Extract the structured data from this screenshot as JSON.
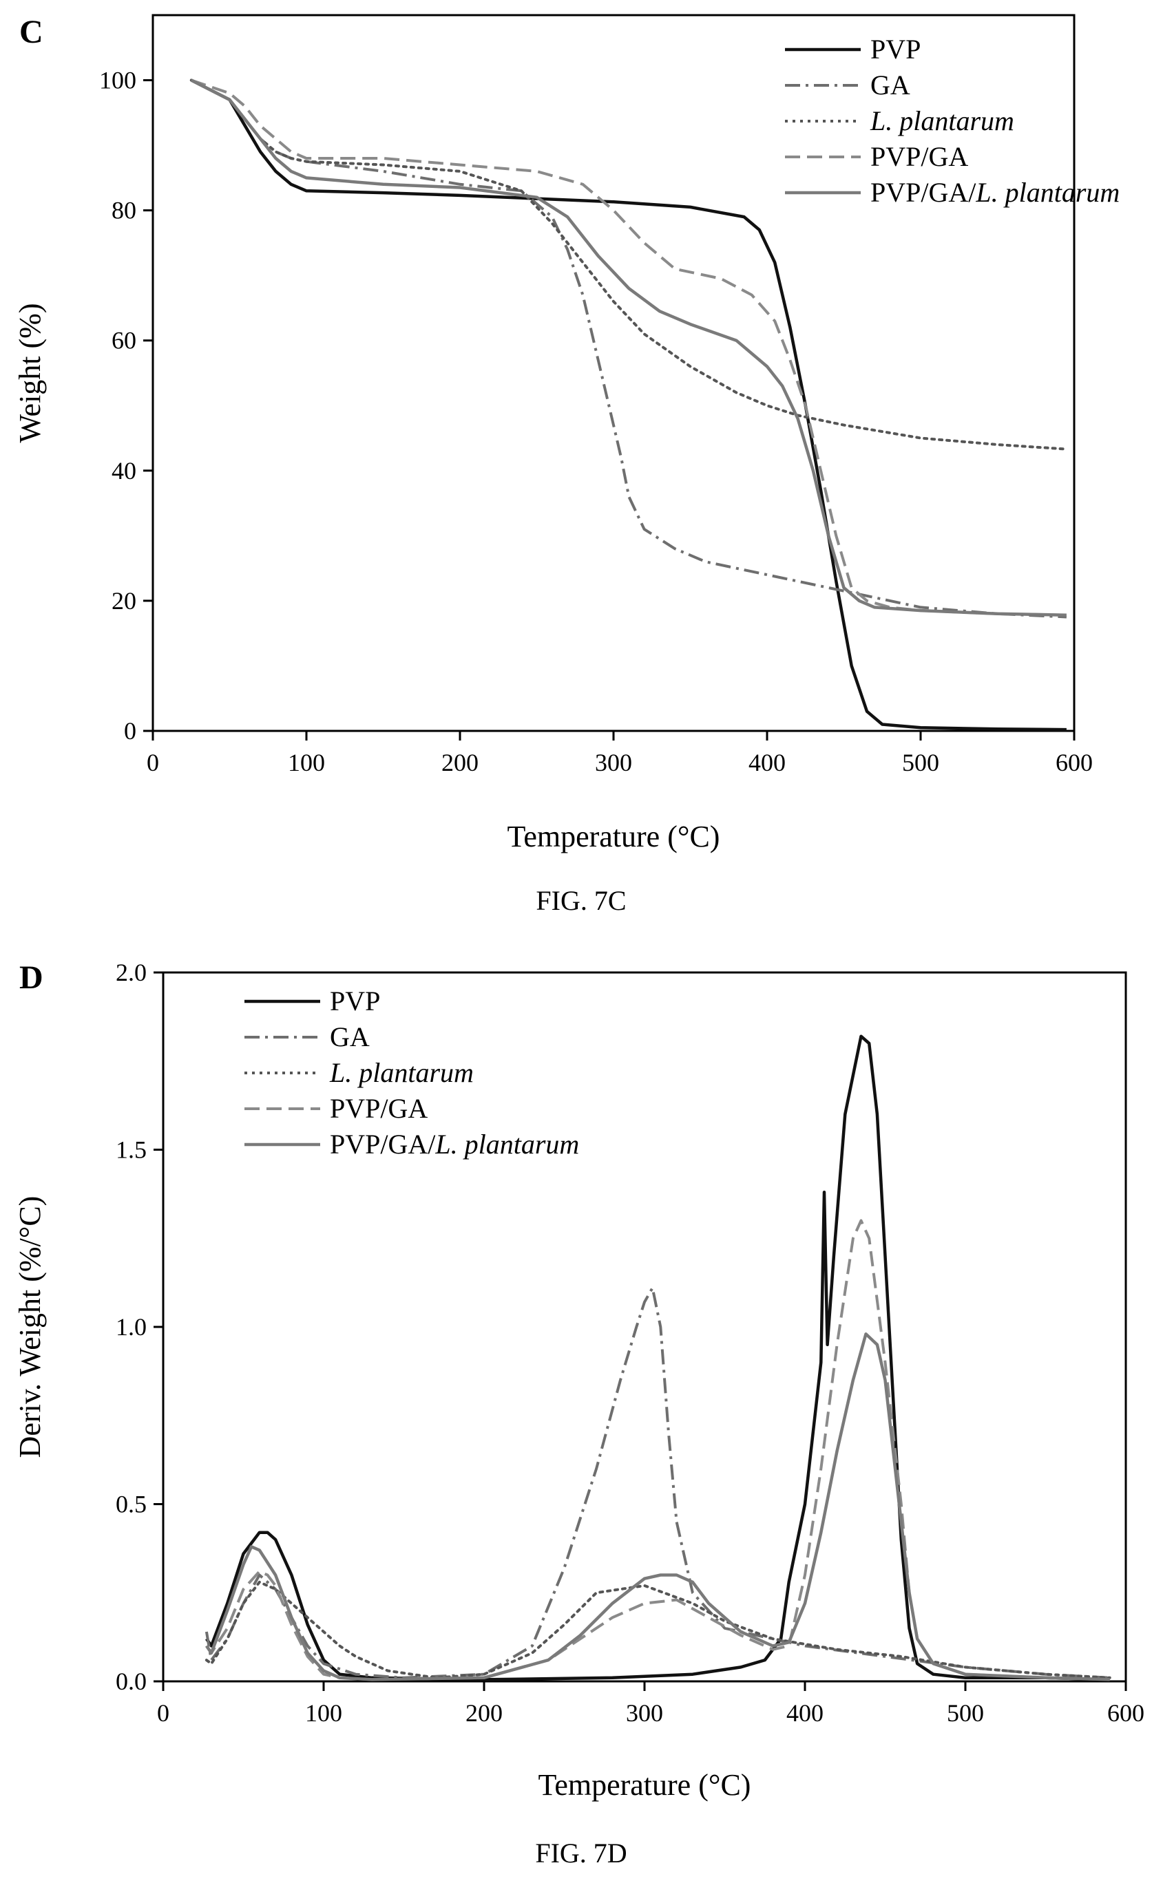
{
  "chart_data": [
    {
      "type": "line",
      "panel_label": "C",
      "caption": "FIG. 7C",
      "xlabel": "Temperature (°C)",
      "ylabel": "Weight (%)",
      "xlim": [
        0,
        600
      ],
      "ylim": [
        0,
        110
      ],
      "xticks": [
        0,
        100,
        200,
        300,
        400,
        500,
        600
      ],
      "yticks": [
        0,
        20,
        40,
        60,
        80,
        100
      ],
      "legend_position": "top-right",
      "grid": false,
      "series": [
        {
          "name": "PVP",
          "legend_parts": [
            {
              "text": "PVP",
              "italic": false
            }
          ],
          "color": "#111111",
          "dash": "solid",
          "x": [
            25,
            50,
            60,
            70,
            80,
            90,
            100,
            150,
            200,
            250,
            300,
            350,
            385,
            395,
            405,
            415,
            425,
            435,
            445,
            455,
            465,
            475,
            500,
            550,
            595
          ],
          "y": [
            100,
            97,
            93,
            89,
            86,
            84,
            83,
            82.7,
            82.3,
            81.8,
            81.3,
            80.5,
            79,
            77,
            72,
            62,
            50,
            37,
            23,
            10,
            3,
            1,
            0.5,
            0.3,
            0.2
          ]
        },
        {
          "name": "GA",
          "legend_parts": [
            {
              "text": "GA",
              "italic": false
            }
          ],
          "color": "#6e6e6e",
          "dash": "dashdot",
          "x": [
            25,
            50,
            60,
            70,
            80,
            90,
            100,
            150,
            200,
            240,
            260,
            270,
            280,
            290,
            300,
            305,
            310,
            320,
            340,
            360,
            400,
            450,
            500,
            550,
            595
          ],
          "y": [
            100,
            97,
            94,
            91,
            89,
            88,
            87.5,
            86,
            84,
            83,
            79,
            74,
            67,
            57,
            47,
            42,
            36,
            31,
            28,
            26,
            24,
            21.5,
            19,
            18,
            17.5
          ]
        },
        {
          "name": "L. plantarum",
          "legend_parts": [
            {
              "text": "L. plantarum",
              "italic": true
            }
          ],
          "color": "#555555",
          "dash": "dotted",
          "x": [
            25,
            50,
            60,
            70,
            80,
            90,
            100,
            150,
            200,
            240,
            260,
            280,
            300,
            320,
            350,
            380,
            400,
            420,
            450,
            500,
            550,
            595
          ],
          "y": [
            100,
            97,
            94,
            91,
            89,
            88,
            87.5,
            87,
            86,
            83,
            78,
            72,
            66,
            61,
            56,
            52,
            50,
            48.5,
            47,
            45,
            44,
            43.3
          ]
        },
        {
          "name": "PVP/GA",
          "legend_parts": [
            {
              "text": "PVP/GA",
              "italic": false
            }
          ],
          "color": "#8a8a8a",
          "dash": "dashed",
          "x": [
            25,
            50,
            60,
            70,
            80,
            90,
            100,
            150,
            200,
            250,
            280,
            300,
            320,
            340,
            370,
            390,
            405,
            415,
            425,
            435,
            445,
            455,
            465,
            480,
            500,
            550,
            595
          ],
          "y": [
            100,
            98,
            96,
            93,
            91,
            89,
            88,
            88,
            87,
            86,
            84,
            80,
            75,
            71,
            69.5,
            67,
            63,
            57,
            50,
            40,
            30,
            22,
            20,
            19,
            18.5,
            18,
            17.8
          ]
        },
        {
          "name": "PVP/GA/L. plantarum",
          "legend_parts": [
            {
              "text": "PVP/GA/",
              "italic": false
            },
            {
              "text": "L. plantarum",
              "italic": true
            }
          ],
          "color": "#7a7a7a",
          "dash": "solid",
          "x": [
            25,
            50,
            60,
            70,
            80,
            90,
            100,
            150,
            200,
            250,
            270,
            290,
            310,
            330,
            350,
            380,
            400,
            410,
            420,
            430,
            440,
            450,
            460,
            470,
            500,
            550,
            595
          ],
          "y": [
            100,
            97,
            94,
            91,
            88,
            86,
            85,
            84,
            83.5,
            82,
            79,
            73,
            68,
            64.5,
            62.5,
            60,
            56,
            53,
            48,
            40,
            30,
            22,
            20,
            19,
            18.5,
            18,
            17.8
          ]
        }
      ]
    },
    {
      "type": "line",
      "panel_label": "D",
      "caption": "FIG. 7D",
      "xlabel": "Temperature (°C)",
      "ylabel": "Deriv. Weight (%/°C)",
      "xlim": [
        0,
        600
      ],
      "ylim": [
        0,
        2.0
      ],
      "xticks": [
        0,
        100,
        200,
        300,
        400,
        500,
        600
      ],
      "yticks": [
        0.0,
        0.5,
        1.0,
        1.5,
        2.0
      ],
      "ytick_labels": [
        "0.0",
        "0.5",
        "1.0",
        "1.5",
        "2.0"
      ],
      "legend_position": "top-left",
      "grid": false,
      "series": [
        {
          "name": "PVP",
          "legend_parts": [
            {
              "text": "PVP",
              "italic": false
            }
          ],
          "color": "#111111",
          "dash": "solid",
          "x": [
            27,
            30,
            40,
            50,
            60,
            65,
            70,
            80,
            90,
            100,
            110,
            130,
            200,
            280,
            330,
            360,
            375,
            385,
            390,
            400,
            410,
            412,
            414,
            418,
            425,
            435,
            440,
            445,
            450,
            455,
            460,
            465,
            470,
            480,
            500,
            550,
            590
          ],
          "y": [
            0.12,
            0.1,
            0.22,
            0.36,
            0.42,
            0.42,
            0.4,
            0.3,
            0.16,
            0.06,
            0.02,
            0.01,
            0.005,
            0.01,
            0.02,
            0.04,
            0.06,
            0.12,
            0.28,
            0.5,
            0.9,
            1.38,
            0.95,
            1.2,
            1.6,
            1.82,
            1.8,
            1.6,
            1.2,
            0.8,
            0.4,
            0.15,
            0.05,
            0.02,
            0.01,
            0.01,
            0.005
          ]
        },
        {
          "name": "GA",
          "legend_parts": [
            {
              "text": "GA",
              "italic": false
            }
          ],
          "color": "#6e6e6e",
          "dash": "dashdot",
          "x": [
            27,
            30,
            40,
            50,
            60,
            70,
            80,
            90,
            100,
            120,
            150,
            200,
            230,
            250,
            270,
            285,
            295,
            300,
            305,
            310,
            315,
            320,
            330,
            350,
            400,
            450,
            500,
            550,
            590
          ],
          "y": [
            0.14,
            0.06,
            0.12,
            0.22,
            0.3,
            0.26,
            0.18,
            0.1,
            0.05,
            0.02,
            0.01,
            0.02,
            0.1,
            0.32,
            0.6,
            0.85,
            1.0,
            1.07,
            1.11,
            1.0,
            0.7,
            0.45,
            0.25,
            0.15,
            0.1,
            0.07,
            0.04,
            0.02,
            0.01
          ]
        },
        {
          "name": "L. plantarum",
          "legend_parts": [
            {
              "text": "L. plantarum",
              "italic": true
            }
          ],
          "color": "#555555",
          "dash": "dotted",
          "x": [
            27,
            30,
            40,
            50,
            60,
            70,
            80,
            90,
            100,
            110,
            120,
            140,
            170,
            200,
            230,
            250,
            270,
            300,
            330,
            350,
            380,
            420,
            460,
            500,
            550,
            590
          ],
          "y": [
            0.06,
            0.05,
            0.12,
            0.22,
            0.28,
            0.26,
            0.22,
            0.18,
            0.14,
            0.1,
            0.07,
            0.03,
            0.01,
            0.02,
            0.08,
            0.16,
            0.25,
            0.27,
            0.22,
            0.17,
            0.12,
            0.09,
            0.07,
            0.04,
            0.02,
            0.01
          ]
        },
        {
          "name": "PVP/GA",
          "legend_parts": [
            {
              "text": "PVP/GA",
              "italic": false
            }
          ],
          "color": "#8a8a8a",
          "dash": "dashed",
          "x": [
            27,
            30,
            40,
            50,
            60,
            65,
            70,
            80,
            90,
            100,
            110,
            130,
            200,
            240,
            260,
            280,
            300,
            320,
            340,
            360,
            380,
            390,
            400,
            410,
            420,
            430,
            435,
            440,
            450,
            460,
            465,
            470,
            480,
            500,
            550,
            590
          ],
          "y": [
            0.1,
            0.08,
            0.15,
            0.26,
            0.31,
            0.3,
            0.27,
            0.16,
            0.07,
            0.02,
            0.01,
            0.005,
            0.01,
            0.06,
            0.12,
            0.18,
            0.22,
            0.23,
            0.18,
            0.13,
            0.09,
            0.1,
            0.3,
            0.6,
            0.95,
            1.25,
            1.3,
            1.25,
            0.9,
            0.5,
            0.25,
            0.12,
            0.05,
            0.02,
            0.01,
            0.005
          ]
        },
        {
          "name": "PVP/GA/L. plantarum",
          "legend_parts": [
            {
              "text": "PVP/GA/",
              "italic": false
            },
            {
              "text": "L. plantarum",
              "italic": true
            }
          ],
          "color": "#7a7a7a",
          "dash": "solid",
          "x": [
            27,
            30,
            40,
            50,
            55,
            60,
            70,
            80,
            90,
            100,
            110,
            130,
            200,
            240,
            260,
            280,
            300,
            310,
            320,
            330,
            340,
            360,
            380,
            390,
            400,
            410,
            420,
            430,
            438,
            445,
            450,
            460,
            465,
            470,
            480,
            500,
            550,
            590
          ],
          "y": [
            0.1,
            0.08,
            0.2,
            0.33,
            0.38,
            0.37,
            0.3,
            0.18,
            0.08,
            0.03,
            0.01,
            0.005,
            0.01,
            0.06,
            0.13,
            0.22,
            0.29,
            0.3,
            0.3,
            0.28,
            0.22,
            0.14,
            0.1,
            0.11,
            0.22,
            0.42,
            0.65,
            0.85,
            0.98,
            0.95,
            0.85,
            0.45,
            0.25,
            0.12,
            0.05,
            0.02,
            0.01,
            0.005
          ]
        }
      ]
    }
  ]
}
